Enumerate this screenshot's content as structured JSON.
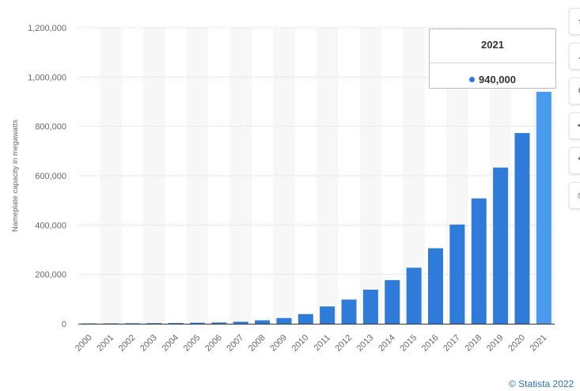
{
  "chart_data": {
    "type": "bar",
    "categories": [
      "2000",
      "2001",
      "2002",
      "2003",
      "2004",
      "2005",
      "2006",
      "2007",
      "2008",
      "2009",
      "2010",
      "2011",
      "2012",
      "2013",
      "2014",
      "2015",
      "2016",
      "2017",
      "2018",
      "2019",
      "2020",
      "2021"
    ],
    "values": [
      1200,
      1400,
      2000,
      2500,
      3000,
      4000,
      5000,
      8000,
      14000,
      23000,
      39000,
      70000,
      98000,
      138000,
      177000,
      227000,
      306000,
      402000,
      508000,
      633000,
      773000,
      940000
    ],
    "ylabel": "Nameplate capacity in megawatts",
    "ylim": [
      0,
      1200000
    ],
    "yticks": [
      0,
      200000,
      400000,
      600000,
      800000,
      1000000,
      1200000
    ],
    "ytick_labels": [
      "0",
      "200,000",
      "400,000",
      "600,000",
      "800,000",
      "1,000,000",
      "1,200,000"
    ],
    "grid": true,
    "colors": {
      "bar": "#2f7bd9",
      "highlight": "#4a9af0",
      "band": "#f7f7f7",
      "grid": "#c8c8c8"
    },
    "highlighted_index": 21
  },
  "tooltip": {
    "title": "2021",
    "value": "940,000"
  },
  "toolbar": {
    "icons": [
      "star-icon",
      "bell-icon",
      "gear-icon",
      "share-icon",
      "quote-icon",
      "print-icon"
    ]
  },
  "credit": "© Statista 2022"
}
